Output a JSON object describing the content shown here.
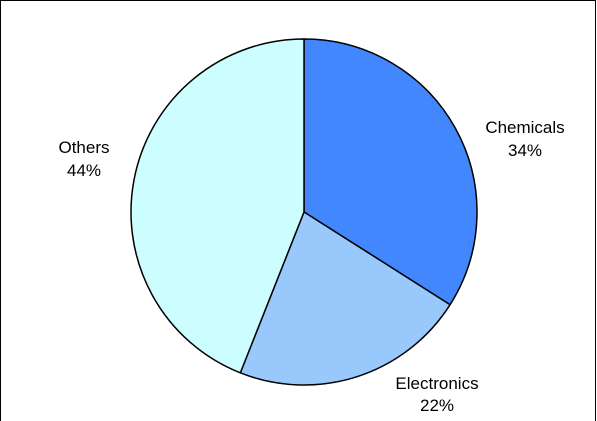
{
  "chart_data": {
    "type": "pie",
    "title": "",
    "start_angle_deg": 0,
    "direction": "clockwise",
    "slices": [
      {
        "label": "Chemicals",
        "value": 34,
        "percent_label": "34%",
        "color": "#4287fd"
      },
      {
        "label": "Electronics",
        "value": 22,
        "percent_label": "22%",
        "color": "#99c9fc"
      },
      {
        "label": "Others",
        "value": 44,
        "percent_label": "44%",
        "color": "#ccfdff"
      }
    ],
    "slice_border_color": "#000000",
    "legend": "none"
  }
}
